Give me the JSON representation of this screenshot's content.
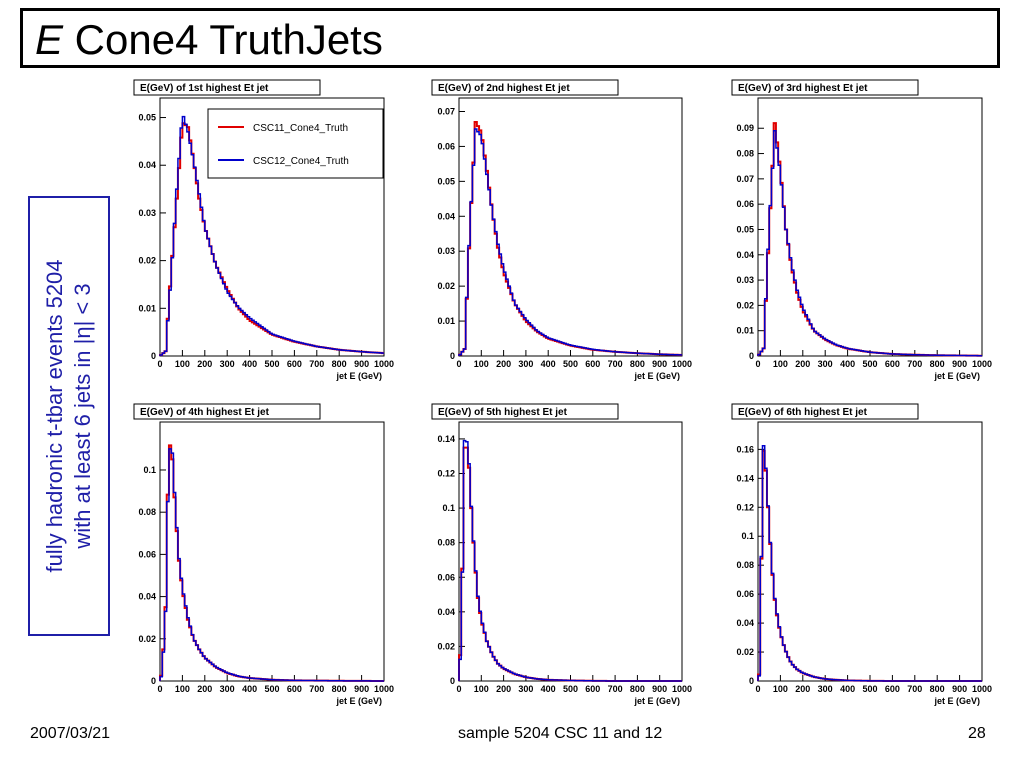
{
  "slide": {
    "title_italic": "E",
    "title_rest": " Cone4 TruthJets",
    "side_line1": "fully hadronic t-tbar events 5204",
    "side_line2": "with at least 6 jets in |η| < 3",
    "footer_date": "2007/03/21",
    "footer_center": "sample 5204 CSC 11 and 12",
    "footer_page": "28"
  },
  "colors": {
    "csc11": "#e00000",
    "csc12": "#0000cc",
    "side_text": "#1f1fa8"
  },
  "chart_data": [
    {
      "type": "line",
      "title": "E(GeV) of 1st highest Et jet",
      "xlabel": "jet E (GeV)",
      "xlim": [
        0,
        1000
      ],
      "ylim": [
        0,
        0.052
      ],
      "xticks": [
        0,
        100,
        200,
        300,
        400,
        500,
        600,
        700,
        800,
        900,
        1000
      ],
      "yticks": [
        "0",
        "0.01",
        "0.02",
        "0.03",
        "0.04",
        "0.05"
      ],
      "ytick_values": [
        0,
        0.01,
        0.02,
        0.03,
        0.04,
        0.05
      ],
      "legend": {
        "placement": "top-right",
        "entries": [
          "CSC11_Cone4_Truth",
          "CSC12_Cone4_Truth"
        ]
      },
      "series": [
        {
          "name": "CSC11_Cone4_Truth",
          "x": [
            0,
            25,
            50,
            75,
            100,
            125,
            150,
            175,
            200,
            250,
            300,
            350,
            400,
            500,
            600,
            700,
            800,
            900,
            1000
          ],
          "y": [
            0,
            0.001,
            0.018,
            0.033,
            0.049,
            0.048,
            0.041,
            0.033,
            0.027,
            0.019,
            0.014,
            0.01,
            0.0075,
            0.0045,
            0.003,
            0.002,
            0.0013,
            0.0009,
            0.0006
          ]
        },
        {
          "name": "CSC12_Cone4_Truth",
          "x": [
            0,
            25,
            50,
            75,
            100,
            125,
            150,
            175,
            200,
            250,
            300,
            350,
            400,
            500,
            600,
            700,
            800,
            900,
            1000
          ],
          "y": [
            0,
            0.001,
            0.017,
            0.035,
            0.051,
            0.047,
            0.041,
            0.034,
            0.027,
            0.019,
            0.0135,
            0.0102,
            0.008,
            0.0046,
            0.0031,
            0.002,
            0.0013,
            0.0009,
            0.0006
          ]
        }
      ]
    },
    {
      "type": "line",
      "title": "E(GeV) of 2nd highest Et jet",
      "xlabel": "jet E (GeV)",
      "xlim": [
        0,
        1000
      ],
      "ylim": [
        0,
        0.071
      ],
      "xticks": [
        0,
        100,
        200,
        300,
        400,
        500,
        600,
        700,
        800,
        900,
        1000
      ],
      "yticks": [
        "0",
        "0.01",
        "0.02",
        "0.03",
        "0.04",
        "0.05",
        "0.06",
        "0.07"
      ],
      "ytick_values": [
        0,
        0.01,
        0.02,
        0.03,
        0.04,
        0.05,
        0.06,
        0.07
      ],
      "series": [
        {
          "name": "CSC11_Cone4_Truth",
          "x": [
            0,
            25,
            50,
            75,
            100,
            125,
            150,
            175,
            200,
            250,
            300,
            350,
            400,
            500,
            600,
            700,
            800,
            900,
            1000
          ],
          "y": [
            0,
            0.002,
            0.038,
            0.067,
            0.064,
            0.053,
            0.041,
            0.031,
            0.024,
            0.015,
            0.01,
            0.007,
            0.005,
            0.003,
            0.0018,
            0.0012,
            0.0008,
            0.0005,
            0.0003
          ]
        },
        {
          "name": "CSC12_Cone4_Truth",
          "x": [
            0,
            25,
            50,
            75,
            100,
            125,
            150,
            175,
            200,
            250,
            300,
            350,
            400,
            500,
            600,
            700,
            800,
            900,
            1000
          ],
          "y": [
            0,
            0.002,
            0.039,
            0.065,
            0.063,
            0.052,
            0.041,
            0.032,
            0.025,
            0.015,
            0.0105,
            0.0072,
            0.0052,
            0.0031,
            0.0019,
            0.0012,
            0.0008,
            0.0005,
            0.0003
          ]
        }
      ]
    },
    {
      "type": "line",
      "title": "E(GeV) of 3rd highest Et jet",
      "xlabel": "jet E (GeV)",
      "xlim": [
        0,
        1000
      ],
      "ylim": [
        0,
        0.098
      ],
      "xticks": [
        0,
        100,
        200,
        300,
        400,
        500,
        600,
        700,
        800,
        900,
        1000
      ],
      "yticks": [
        "0",
        "0.01",
        "0.02",
        "0.03",
        "0.04",
        "0.05",
        "0.06",
        "0.07",
        "0.08",
        "0.09"
      ],
      "ytick_values": [
        0,
        0.01,
        0.02,
        0.03,
        0.04,
        0.05,
        0.06,
        0.07,
        0.08,
        0.09
      ],
      "series": [
        {
          "name": "CSC11_Cone4_Truth",
          "x": [
            0,
            25,
            50,
            75,
            100,
            125,
            150,
            175,
            200,
            250,
            300,
            350,
            400,
            500,
            600,
            700,
            800,
            900,
            1000
          ],
          "y": [
            0,
            0.003,
            0.05,
            0.092,
            0.073,
            0.05,
            0.035,
            0.025,
            0.018,
            0.01,
            0.0065,
            0.0043,
            0.0029,
            0.0015,
            0.0008,
            0.0005,
            0.0003,
            0.0002,
            0.0001
          ]
        },
        {
          "name": "CSC12_Cone4_Truth",
          "x": [
            0,
            25,
            50,
            75,
            100,
            125,
            150,
            175,
            200,
            250,
            300,
            350,
            400,
            500,
            600,
            700,
            800,
            900,
            1000
          ],
          "y": [
            0,
            0.003,
            0.052,
            0.089,
            0.072,
            0.05,
            0.036,
            0.026,
            0.019,
            0.01,
            0.0067,
            0.0044,
            0.003,
            0.0015,
            0.0008,
            0.0005,
            0.0003,
            0.0002,
            0.0001
          ]
        }
      ]
    },
    {
      "type": "line",
      "title": "E(GeV) of 4th highest Et jet",
      "xlabel": "jet E (GeV)",
      "xlim": [
        0,
        1000
      ],
      "ylim": [
        0,
        0.118
      ],
      "xticks": [
        0,
        100,
        200,
        300,
        400,
        500,
        600,
        700,
        800,
        900,
        1000
      ],
      "yticks": [
        "0",
        "0.02",
        "0.04",
        "0.06",
        "0.08",
        "0.1"
      ],
      "ytick_values": [
        0,
        0.02,
        0.04,
        0.06,
        0.08,
        0.1
      ],
      "series": [
        {
          "name": "CSC11_Cone4_Truth",
          "x": [
            0,
            10,
            25,
            40,
            55,
            70,
            85,
            100,
            125,
            150,
            175,
            200,
            250,
            300,
            350,
            400,
            500,
            600,
            700,
            800,
            1000
          ],
          "y": [
            0,
            0.005,
            0.035,
            0.115,
            0.105,
            0.078,
            0.057,
            0.043,
            0.029,
            0.02,
            0.015,
            0.011,
            0.0065,
            0.0038,
            0.0022,
            0.0014,
            0.0006,
            0.0003,
            0.0002,
            0.0001,
            0.0
          ]
        },
        {
          "name": "CSC12_Cone4_Truth",
          "x": [
            0,
            10,
            25,
            40,
            55,
            70,
            85,
            100,
            125,
            150,
            175,
            200,
            250,
            300,
            350,
            400,
            500,
            600,
            700,
            800,
            1000
          ],
          "y": [
            0,
            0.004,
            0.033,
            0.111,
            0.108,
            0.08,
            0.058,
            0.044,
            0.03,
            0.02,
            0.015,
            0.011,
            0.0066,
            0.0039,
            0.0023,
            0.0014,
            0.0006,
            0.0003,
            0.0002,
            0.0001,
            0.0
          ]
        }
      ]
    },
    {
      "type": "line",
      "title": "E(GeV) of 5th highest Et jet",
      "xlabel": "jet E (GeV)",
      "xlim": [
        0,
        1000
      ],
      "ylim": [
        0,
        0.144
      ],
      "xticks": [
        0,
        100,
        200,
        300,
        400,
        500,
        600,
        700,
        800,
        900,
        1000
      ],
      "yticks": [
        "0",
        "0.02",
        "0.04",
        "0.06",
        "0.08",
        "0.1",
        "0.12",
        "0.14"
      ],
      "ytick_values": [
        0,
        0.02,
        0.04,
        0.06,
        0.08,
        0.1,
        0.12,
        0.14
      ],
      "series": [
        {
          "name": "CSC11_Cone4_Truth",
          "x": [
            0,
            10,
            25,
            40,
            55,
            70,
            85,
            100,
            125,
            150,
            175,
            200,
            250,
            300,
            350,
            400,
            500,
            600,
            700,
            1000
          ],
          "y": [
            0,
            0.03,
            0.135,
            0.135,
            0.1,
            0.07,
            0.048,
            0.035,
            0.023,
            0.015,
            0.01,
            0.0072,
            0.004,
            0.0022,
            0.0012,
            0.0007,
            0.0003,
            0.0001,
            0.0,
            0.0
          ]
        },
        {
          "name": "CSC12_Cone4_Truth",
          "x": [
            0,
            10,
            25,
            40,
            55,
            70,
            85,
            100,
            125,
            150,
            175,
            200,
            250,
            300,
            350,
            400,
            500,
            600,
            700,
            1000
          ],
          "y": [
            0,
            0.025,
            0.139,
            0.138,
            0.101,
            0.071,
            0.049,
            0.036,
            0.023,
            0.015,
            0.01,
            0.0073,
            0.0041,
            0.0022,
            0.0012,
            0.0007,
            0.0003,
            0.0001,
            0.0,
            0.0
          ]
        }
      ]
    },
    {
      "type": "line",
      "title": "E(GeV) of 6th highest Et jet",
      "xlabel": "jet E (GeV)",
      "xlim": [
        0,
        1000
      ],
      "ylim": [
        0,
        0.172
      ],
      "xticks": [
        0,
        100,
        200,
        300,
        400,
        500,
        600,
        700,
        800,
        900,
        1000
      ],
      "yticks": [
        "0",
        "0.02",
        "0.04",
        "0.06",
        "0.08",
        "0.1",
        "0.12",
        "0.14",
        "0.16"
      ],
      "ytick_values": [
        0,
        0.02,
        0.04,
        0.06,
        0.08,
        0.1,
        0.12,
        0.14,
        0.16
      ],
      "series": [
        {
          "name": "CSC11_Cone4_Truth",
          "x": [
            0,
            10,
            20,
            30,
            45,
            60,
            75,
            90,
            110,
            130,
            150,
            175,
            200,
            250,
            300,
            350,
            400,
            500,
            600,
            1000
          ],
          "y": [
            0,
            0.009,
            0.16,
            0.158,
            0.12,
            0.082,
            0.056,
            0.04,
            0.027,
            0.018,
            0.012,
            0.008,
            0.0055,
            0.0028,
            0.0014,
            0.0008,
            0.0004,
            0.0001,
            0.0,
            0.0
          ]
        },
        {
          "name": "CSC12_Cone4_Truth",
          "x": [
            0,
            10,
            20,
            30,
            45,
            60,
            75,
            90,
            110,
            130,
            150,
            175,
            200,
            250,
            300,
            350,
            400,
            500,
            600,
            1000
          ],
          "y": [
            0,
            0.007,
            0.165,
            0.16,
            0.121,
            0.083,
            0.057,
            0.041,
            0.027,
            0.018,
            0.012,
            0.008,
            0.0056,
            0.0028,
            0.0014,
            0.0008,
            0.0004,
            0.0001,
            0.0,
            0.0
          ]
        }
      ]
    }
  ]
}
